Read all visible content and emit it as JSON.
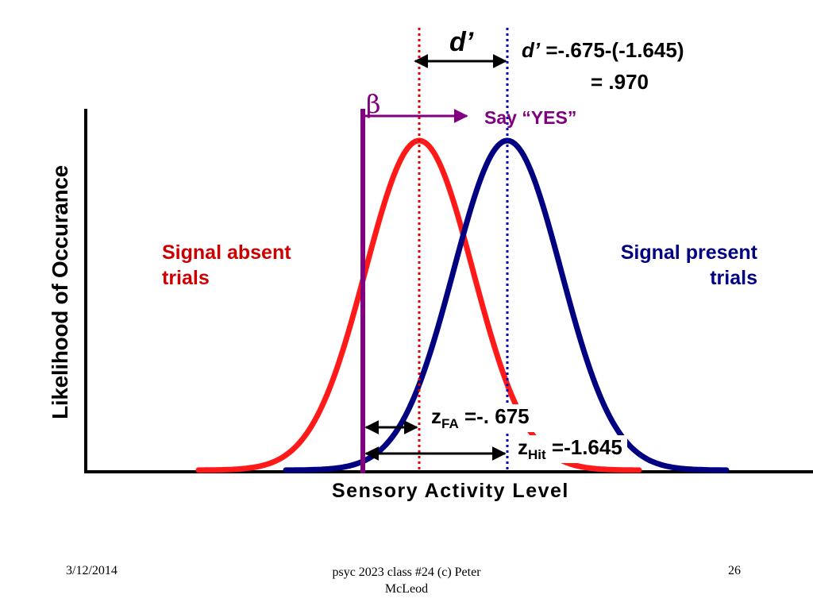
{
  "diagram": {
    "d_prime_marker": "d’",
    "d_prime_formula_symbol": "d’",
    "d_prime_formula_expr": " =-.675-(-1.645)",
    "d_prime_formula_result": "= .970",
    "beta_symbol": "β",
    "say_yes_label": "Say “YES”",
    "signal_absent_line1": "Signal absent",
    "signal_absent_line2": "trials",
    "signal_present_line1": "Signal present",
    "signal_present_line2": "trials",
    "y_axis_label": "Likelihood of Occurance",
    "x_axis_label": "Sensory Activity Level",
    "z_fa_symbol": "z",
    "z_fa_subscript": "FA",
    "z_fa_value": " =-. 675",
    "z_hit_symbol": "z",
    "z_hit_subscript": "Hit",
    "z_hit_value": " =-1.645",
    "colors": {
      "noise_curve": "#ff1a1a",
      "signal_curve": "#000080",
      "criterion": "#800080",
      "noise_label": "#cc0000",
      "signal_label": "#000080"
    }
  },
  "footer": {
    "date": "3/12/2014",
    "course_line1": "psyc 2023 class #24 (c) Peter",
    "course_line2": "McLeod",
    "slide_number": "26"
  }
}
